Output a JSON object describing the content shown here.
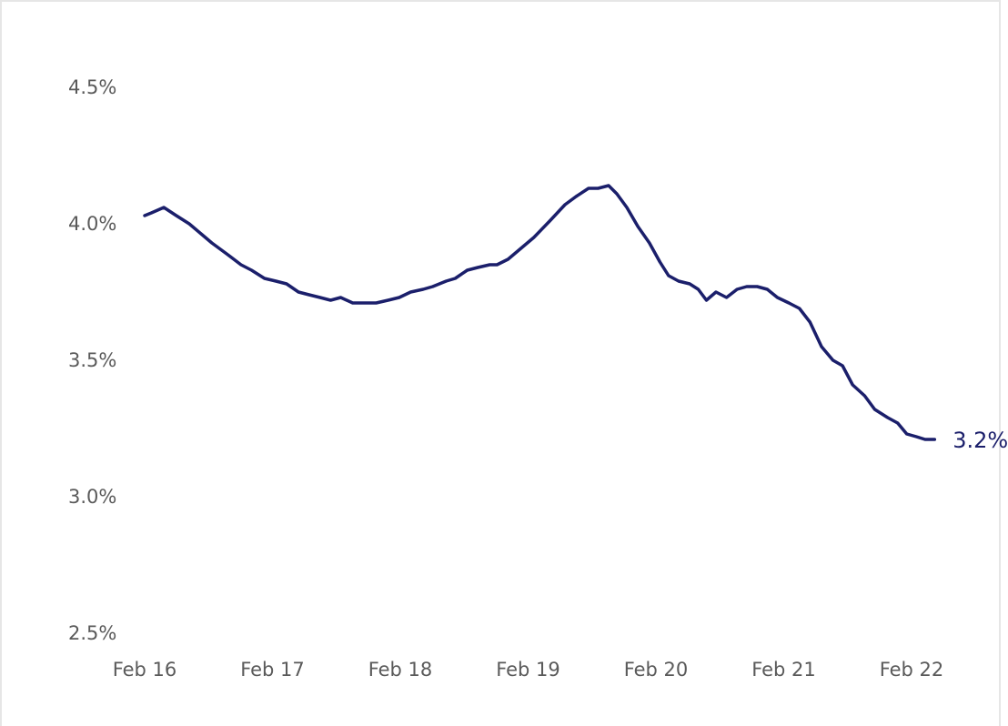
{
  "chart_data": {
    "type": "line",
    "title": "",
    "xlabel": "",
    "ylabel": "",
    "x_ticks": [
      "Feb 16",
      "Feb 17",
      "Feb 18",
      "Feb 19",
      "Feb 20",
      "Feb 21",
      "Feb 22"
    ],
    "y_ticks": [
      "4.5%",
      "4.0%",
      "3.5%",
      "3.0%",
      "2.5%"
    ],
    "ylim": [
      2.5,
      4.5
    ],
    "x_range": [
      "Feb 16",
      "Feb 22"
    ],
    "grid": false,
    "legend": "none",
    "line_color": "#1b1f6b",
    "end_label": "3.2%",
    "series": [
      {
        "x_unit": "date (Feb 16 to Feb 22)",
        "points": [
          [
            "Feb 16",
            4.03
          ],
          [
            "Feb 16",
            4.04
          ],
          [
            "Feb 16",
            4.06
          ],
          [
            "Feb 16",
            4.03
          ],
          [
            "Feb 16",
            4.0
          ],
          [
            "Feb 16",
            3.96
          ],
          [
            "Feb 16",
            3.93
          ],
          [
            "Feb 16",
            3.89
          ],
          [
            "Feb 16",
            3.85
          ],
          [
            "Feb 16",
            3.83
          ],
          [
            "Feb 17",
            3.8
          ],
          [
            "Feb 17",
            3.79
          ],
          [
            "Feb 17",
            3.78
          ],
          [
            "Feb 17",
            3.75
          ],
          [
            "Feb 17",
            3.74
          ],
          [
            "Feb 17",
            3.73
          ],
          [
            "Feb 17",
            3.72
          ],
          [
            "Feb 17",
            3.73
          ],
          [
            "Feb 17",
            3.71
          ],
          [
            "Feb 17",
            3.71
          ],
          [
            "Feb 18",
            3.71
          ],
          [
            "Feb 18",
            3.72
          ],
          [
            "Feb 18",
            3.73
          ],
          [
            "Feb 18",
            3.75
          ],
          [
            "Feb 18",
            3.76
          ],
          [
            "Feb 18",
            3.77
          ],
          [
            "Feb 18",
            3.79
          ],
          [
            "Feb 18",
            3.8
          ],
          [
            "Feb 18",
            3.83
          ],
          [
            "Feb 18",
            3.84
          ],
          [
            "Feb 18",
            3.85
          ],
          [
            "Feb 18",
            3.85
          ],
          [
            "Feb 18",
            3.87
          ],
          [
            "Feb 18",
            3.91
          ],
          [
            "Feb 18",
            3.95
          ],
          [
            "Feb 19",
            4.01
          ],
          [
            "Feb 19",
            4.07
          ],
          [
            "Feb 19",
            4.1
          ],
          [
            "Feb 19",
            4.13
          ],
          [
            "Feb 19",
            4.13
          ],
          [
            "Feb 19",
            4.14
          ],
          [
            "Feb 19",
            4.11
          ],
          [
            "Feb 19",
            4.06
          ],
          [
            "Feb 19",
            3.99
          ],
          [
            "Feb 19",
            3.93
          ],
          [
            "Feb 19",
            3.86
          ],
          [
            "Feb 20",
            3.81
          ],
          [
            "Feb 20",
            3.79
          ],
          [
            "Feb 20",
            3.78
          ],
          [
            "Feb 20",
            3.76
          ],
          [
            "Feb 20",
            3.72
          ],
          [
            "Feb 20",
            3.75
          ],
          [
            "Feb 20",
            3.73
          ],
          [
            "Feb 20",
            3.76
          ],
          [
            "Feb 20",
            3.77
          ],
          [
            "Feb 20",
            3.77
          ],
          [
            "Feb 20",
            3.76
          ],
          [
            "Feb 20",
            3.73
          ],
          [
            "Feb 21",
            3.71
          ],
          [
            "Feb 21",
            3.69
          ],
          [
            "Feb 21",
            3.64
          ],
          [
            "Feb 21",
            3.55
          ],
          [
            "Feb 21",
            3.5
          ],
          [
            "Feb 21",
            3.48
          ],
          [
            "Feb 21",
            3.41
          ],
          [
            "Feb 21",
            3.37
          ],
          [
            "Feb 21",
            3.32
          ],
          [
            "Feb 21",
            3.29
          ],
          [
            "Feb 22",
            3.27
          ],
          [
            "Feb 22",
            3.23
          ],
          [
            "Feb 22",
            3.22
          ],
          [
            "Feb 22",
            3.21
          ],
          [
            "Feb 22",
            3.21
          ]
        ],
        "x_fraction": [
          0.0,
          0.0117,
          0.0333,
          0.055,
          0.0775,
          0.1,
          0.1167,
          0.1425,
          0.1675,
          0.1858,
          0.2083,
          0.2283,
          0.2467,
          0.2675,
          0.2858,
          0.305,
          0.3233,
          0.3408,
          0.3617,
          0.3858,
          0.4025,
          0.4233,
          0.4425,
          0.4625,
          0.4842,
          0.5008,
          0.5242,
          0.54,
          0.5608,
          0.5792,
          0.6,
          0.6125,
          0.6317,
          0.6542,
          0.6767,
          0.7042,
          0.7308,
          0.75,
          0.7717,
          0.7883,
          0.8067,
          0.8208,
          0.8383,
          0.8575,
          0.8775,
          0.8958,
          0.9108,
          0.9283,
          0.9475,
          0.9625,
          0.9767,
          0.9933,
          1.0117,
          1.03,
          1.0467,
          1.065,
          1.0825,
          1.1,
          1.12,
          1.1383,
          1.1567,
          1.1767,
          1.1967,
          1.2133,
          1.2308,
          1.2517,
          1.2692,
          1.2917,
          1.3092,
          1.325,
          1.3417,
          1.3567,
          1.3733
        ]
      }
    ]
  }
}
